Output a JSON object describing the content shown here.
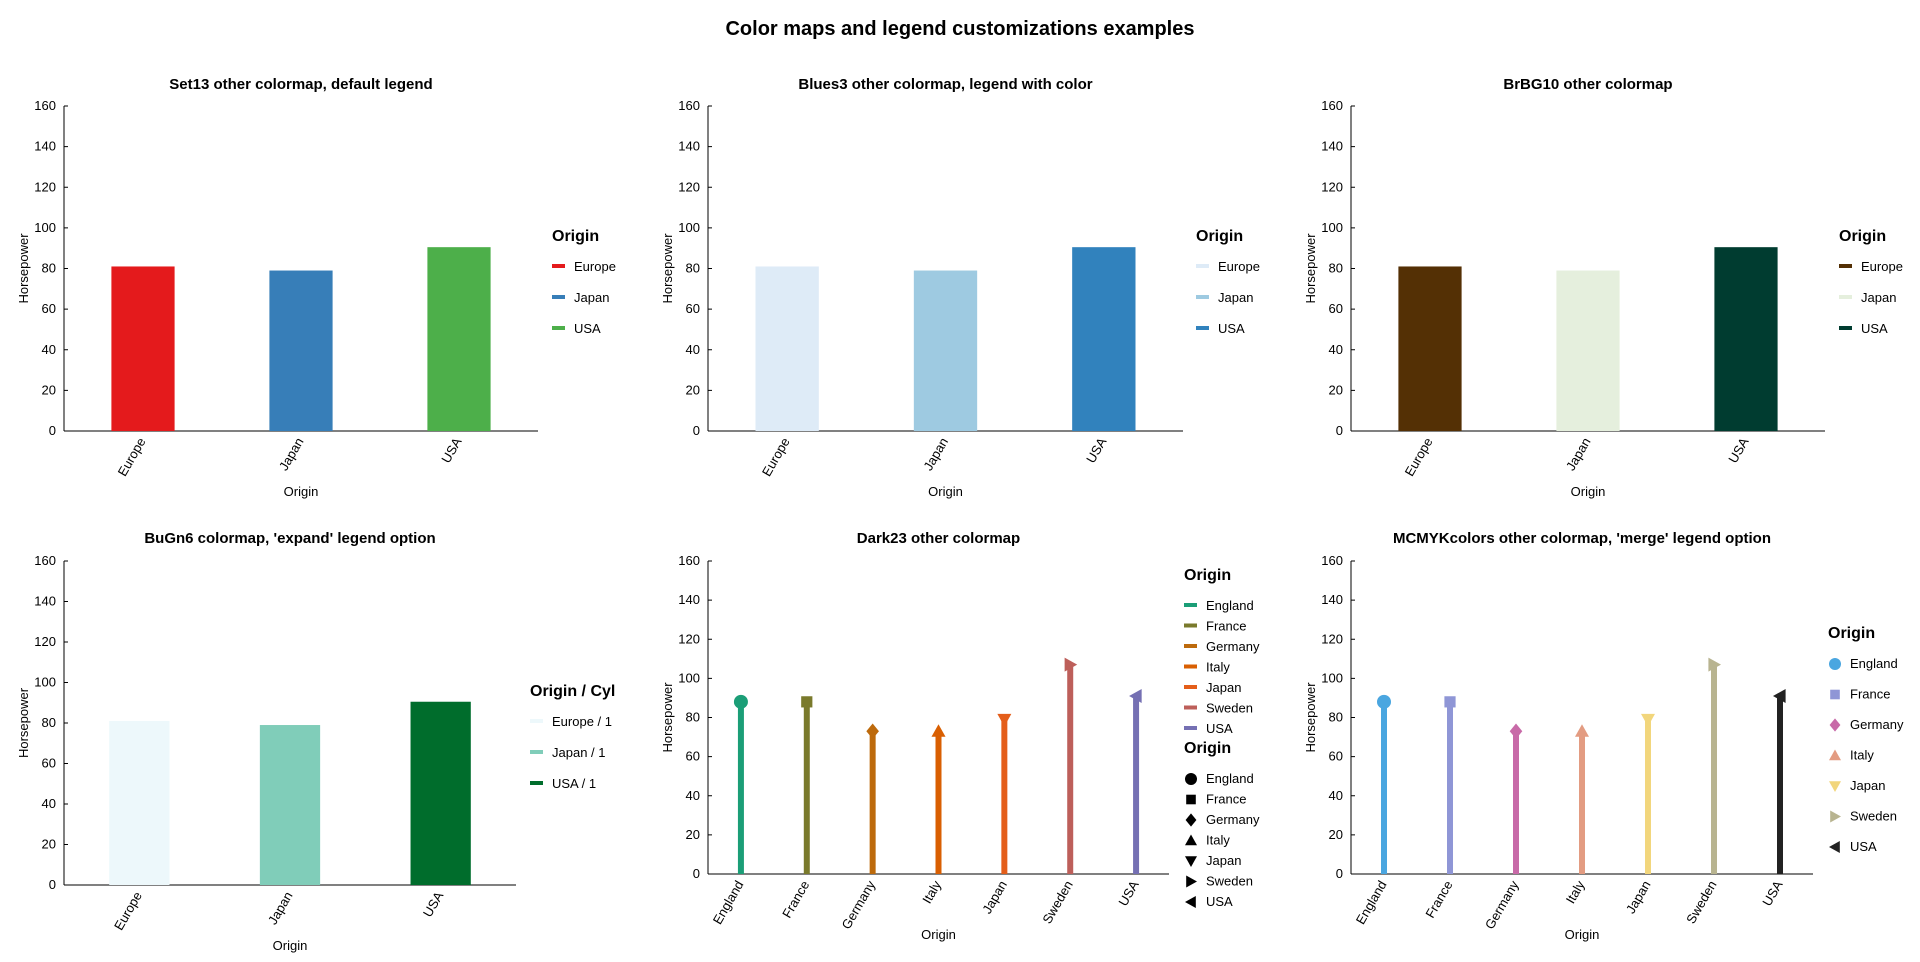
{
  "figure_title": "Color maps and legend customizations examples",
  "chart_data": [
    {
      "type": "bar",
      "title": "Set13 other colormap, default legend",
      "xlabel": "Origin",
      "ylabel": "Horsepower",
      "ylim": [
        0,
        160
      ],
      "yticks": [
        0,
        20,
        40,
        60,
        80,
        100,
        120,
        140,
        160
      ],
      "categories": [
        "Europe",
        "Japan",
        "USA"
      ],
      "values": [
        81,
        79,
        90.5
      ],
      "colors": [
        "#e41a1c",
        "#377eb8",
        "#4daf4a"
      ],
      "legend": {
        "title": "Origin",
        "position": "right",
        "entries": [
          {
            "label": "Europe",
            "color": "#e41a1c",
            "symbol": "line"
          },
          {
            "label": "Japan",
            "color": "#377eb8",
            "symbol": "line"
          },
          {
            "label": "USA",
            "color": "#4daf4a",
            "symbol": "line"
          }
        ]
      }
    },
    {
      "type": "bar",
      "title": "Blues3 other colormap, legend with color",
      "xlabel": "Origin",
      "ylabel": "Horsepower",
      "ylim": [
        0,
        160
      ],
      "yticks": [
        0,
        20,
        40,
        60,
        80,
        100,
        120,
        140,
        160
      ],
      "categories": [
        "Europe",
        "Japan",
        "USA"
      ],
      "values": [
        81,
        79,
        90.5
      ],
      "colors": [
        "#deebf7",
        "#9ecae1",
        "#3182bd"
      ],
      "legend": {
        "title": "Origin",
        "position": "right",
        "entries": [
          {
            "label": "Europe",
            "color": "#deebf7",
            "symbol": "line"
          },
          {
            "label": "Japan",
            "color": "#9ecae1",
            "symbol": "line"
          },
          {
            "label": "USA",
            "color": "#3182bd",
            "symbol": "line"
          }
        ]
      }
    },
    {
      "type": "bar",
      "title": "BrBG10 other colormap",
      "xlabel": "Origin",
      "ylabel": "Horsepower",
      "ylim": [
        0,
        160
      ],
      "yticks": [
        0,
        20,
        40,
        60,
        80,
        100,
        120,
        140,
        160
      ],
      "categories": [
        "Europe",
        "Japan",
        "USA"
      ],
      "values": [
        81,
        79,
        90.5
      ],
      "colors": [
        "#543005",
        "#e5efdd",
        "#003c30"
      ],
      "legend": {
        "title": "Origin",
        "position": "right",
        "entries": [
          {
            "label": "Europe",
            "color": "#543005",
            "symbol": "line"
          },
          {
            "label": "Japan",
            "color": "#e5efdd",
            "symbol": "line"
          },
          {
            "label": "USA",
            "color": "#003c30",
            "symbol": "line"
          }
        ]
      }
    },
    {
      "type": "bar",
      "title": "BuGn6 colormap, 'expand' legend option",
      "xlabel": "Origin",
      "ylabel": "Horsepower",
      "ylim": [
        0,
        160
      ],
      "yticks": [
        0,
        20,
        40,
        60,
        80,
        100,
        120,
        140,
        160
      ],
      "categories": [
        "Europe",
        "Japan",
        "USA"
      ],
      "values": [
        81,
        79,
        90.5
      ],
      "colors": [
        "#edf8fb",
        "#80cdb9",
        "#006d2c"
      ],
      "legend": {
        "title": "Origin / Cyl",
        "position": "right",
        "entries": [
          {
            "label": "Europe / 1",
            "color": "#edf8fb",
            "symbol": "line"
          },
          {
            "label": "Japan / 1",
            "color": "#80cdb9",
            "symbol": "line"
          },
          {
            "label": "USA / 1",
            "color": "#006d2c",
            "symbol": "line"
          }
        ]
      }
    },
    {
      "type": "lollipop",
      "title": "Dark23 other colormap",
      "xlabel": "Origin",
      "ylabel": "Horsepower",
      "ylim": [
        0,
        160
      ],
      "yticks": [
        0,
        20,
        40,
        60,
        80,
        100,
        120,
        140,
        160
      ],
      "categories": [
        "England",
        "France",
        "Germany",
        "Italy",
        "Japan",
        "Sweden",
        "USA"
      ],
      "values": [
        88,
        88,
        73,
        73,
        79,
        107,
        91
      ],
      "colors": [
        "#1b9e77",
        "#7a7a2c",
        "#bd6a0c",
        "#d95f02",
        "#e45e1a",
        "#bd5f5a",
        "#7570b3"
      ],
      "markers": [
        "circle",
        "square",
        "diamond",
        "triangle-up",
        "triangle-down",
        "triangle-right",
        "triangle-left"
      ],
      "legend": [
        {
          "title": "Origin",
          "position": "top-right",
          "entries": [
            {
              "label": "England",
              "color": "#1b9e77",
              "symbol": "line"
            },
            {
              "label": "France",
              "color": "#7a7a2c",
              "symbol": "line"
            },
            {
              "label": "Germany",
              "color": "#bd6a0c",
              "symbol": "line"
            },
            {
              "label": "Italy",
              "color": "#d95f02",
              "symbol": "line"
            },
            {
              "label": "Japan",
              "color": "#e45e1a",
              "symbol": "line"
            },
            {
              "label": "Sweden",
              "color": "#bd5f5a",
              "symbol": "line"
            },
            {
              "label": "USA",
              "color": "#7570b3",
              "symbol": "line"
            }
          ]
        },
        {
          "title": "Origin",
          "position": "right",
          "entries": [
            {
              "label": "England",
              "color": "#000000",
              "symbol": "circle"
            },
            {
              "label": "France",
              "color": "#000000",
              "symbol": "square"
            },
            {
              "label": "Germany",
              "color": "#000000",
              "symbol": "diamond"
            },
            {
              "label": "Italy",
              "color": "#000000",
              "symbol": "triangle-up"
            },
            {
              "label": "Japan",
              "color": "#000000",
              "symbol": "triangle-down"
            },
            {
              "label": "Sweden",
              "color": "#000000",
              "symbol": "triangle-right"
            },
            {
              "label": "USA",
              "color": "#000000",
              "symbol": "triangle-left"
            }
          ]
        }
      ]
    },
    {
      "type": "lollipop",
      "title": "MCMYKcolors other colormap, 'merge' legend option",
      "xlabel": "Origin",
      "ylabel": "Horsepower",
      "ylim": [
        0,
        160
      ],
      "yticks": [
        0,
        20,
        40,
        60,
        80,
        100,
        120,
        140,
        160
      ],
      "categories": [
        "England",
        "France",
        "Germany",
        "Italy",
        "Japan",
        "Sweden",
        "USA"
      ],
      "values": [
        88,
        88,
        73,
        73,
        79,
        107,
        91
      ],
      "colors": [
        "#4aa6e0",
        "#8f96d6",
        "#c86aa8",
        "#e39c82",
        "#f2d67c",
        "#b8b490",
        "#222222"
      ],
      "markers": [
        "circle",
        "square",
        "diamond",
        "triangle-up",
        "triangle-down",
        "triangle-right",
        "triangle-left"
      ],
      "legend": {
        "title": "Origin",
        "position": "right",
        "entries": [
          {
            "label": "England",
            "color": "#4aa6e0",
            "symbol": "circle"
          },
          {
            "label": "France",
            "color": "#8f96d6",
            "symbol": "square"
          },
          {
            "label": "Germany",
            "color": "#c86aa8",
            "symbol": "diamond"
          },
          {
            "label": "Italy",
            "color": "#e39c82",
            "symbol": "triangle-up"
          },
          {
            "label": "Japan",
            "color": "#f2d67c",
            "symbol": "triangle-down"
          },
          {
            "label": "Sweden",
            "color": "#b8b490",
            "symbol": "triangle-right"
          },
          {
            "label": "USA",
            "color": "#222222",
            "symbol": "triangle-left"
          }
        ]
      }
    }
  ]
}
